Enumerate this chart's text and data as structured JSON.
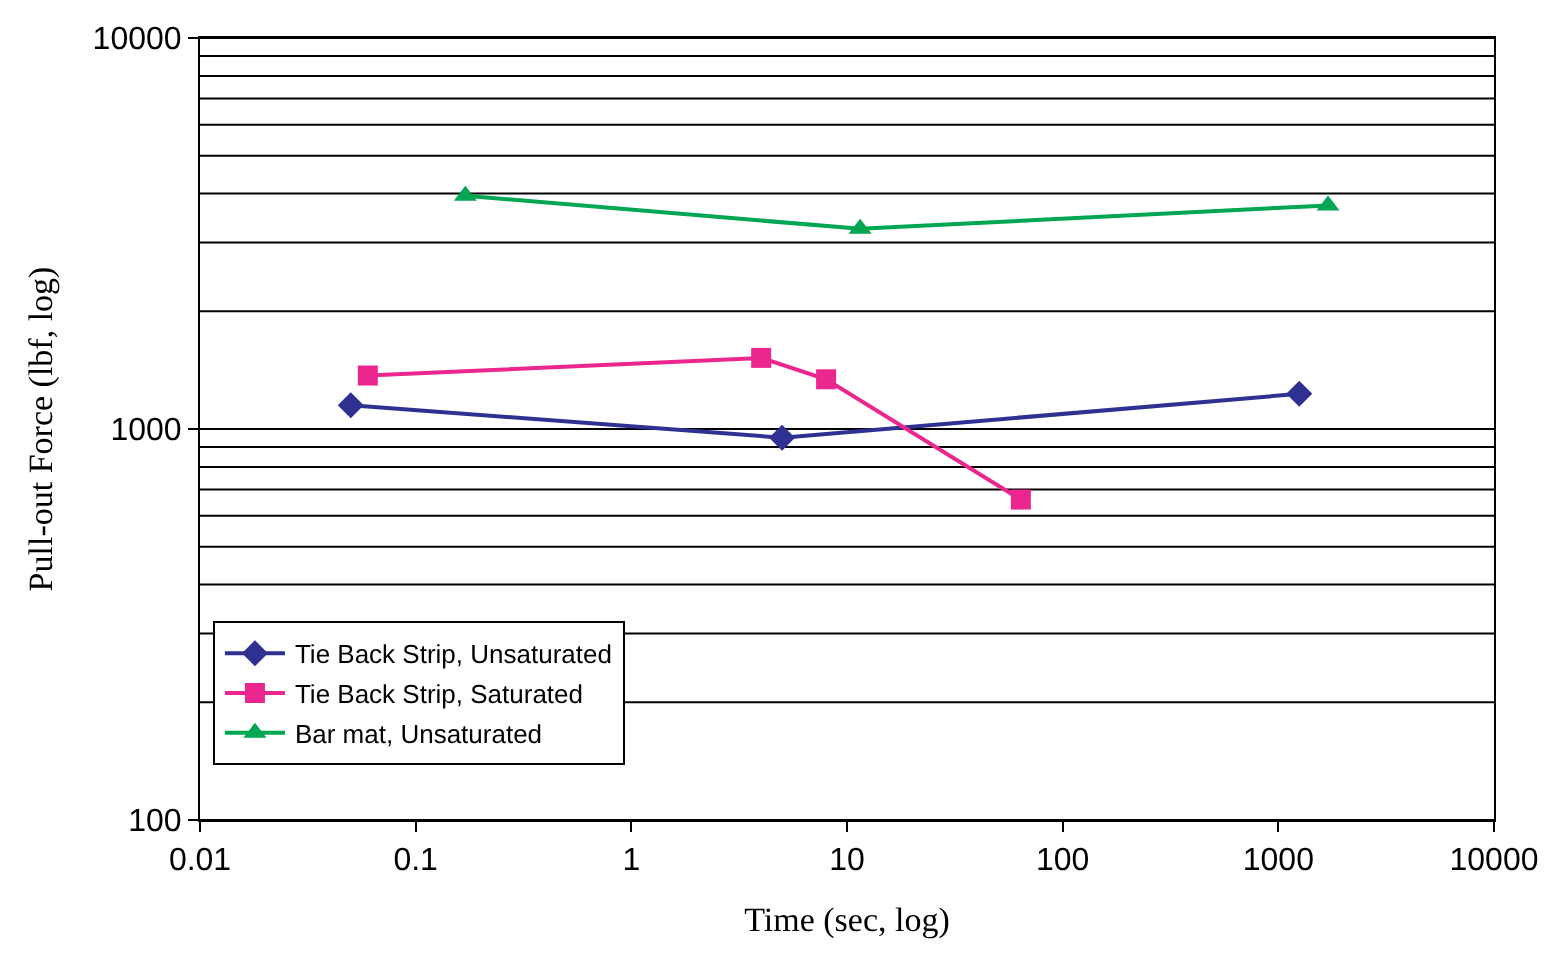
{
  "chart_data": {
    "type": "line",
    "xlabel": "Time (sec, log)",
    "ylabel": "Pull-out Force (lbf, log)",
    "log": "xy",
    "xlim": [
      0.01,
      10000
    ],
    "ylim": [
      100,
      10000
    ],
    "xticks": [
      0.01,
      0.1,
      1,
      10,
      100,
      1000,
      10000
    ],
    "yticks": [
      100,
      1000,
      10000
    ],
    "grid": "y",
    "legend": "bottom left",
    "line_style": "solid",
    "series": [
      {
        "name": "Tie Back Strip, Unsaturated",
        "color": "#2e3192",
        "marker": "diamond",
        "x": [
          0.05,
          5,
          1250
        ],
        "values": [
          1150,
          950,
          1230
        ]
      },
      {
        "name": "Tie Back Strip, Saturated",
        "color": "#ec268f",
        "marker": "square",
        "x": [
          0.06,
          4,
          8,
          64
        ],
        "values": [
          1370,
          1520,
          1340,
          660
        ]
      },
      {
        "name": "Bar mat, Unsaturated",
        "color": "#00a651",
        "marker": "triangle",
        "x": [
          0.17,
          11.5,
          1700
        ],
        "values": [
          3950,
          3250,
          3730
        ]
      }
    ]
  }
}
